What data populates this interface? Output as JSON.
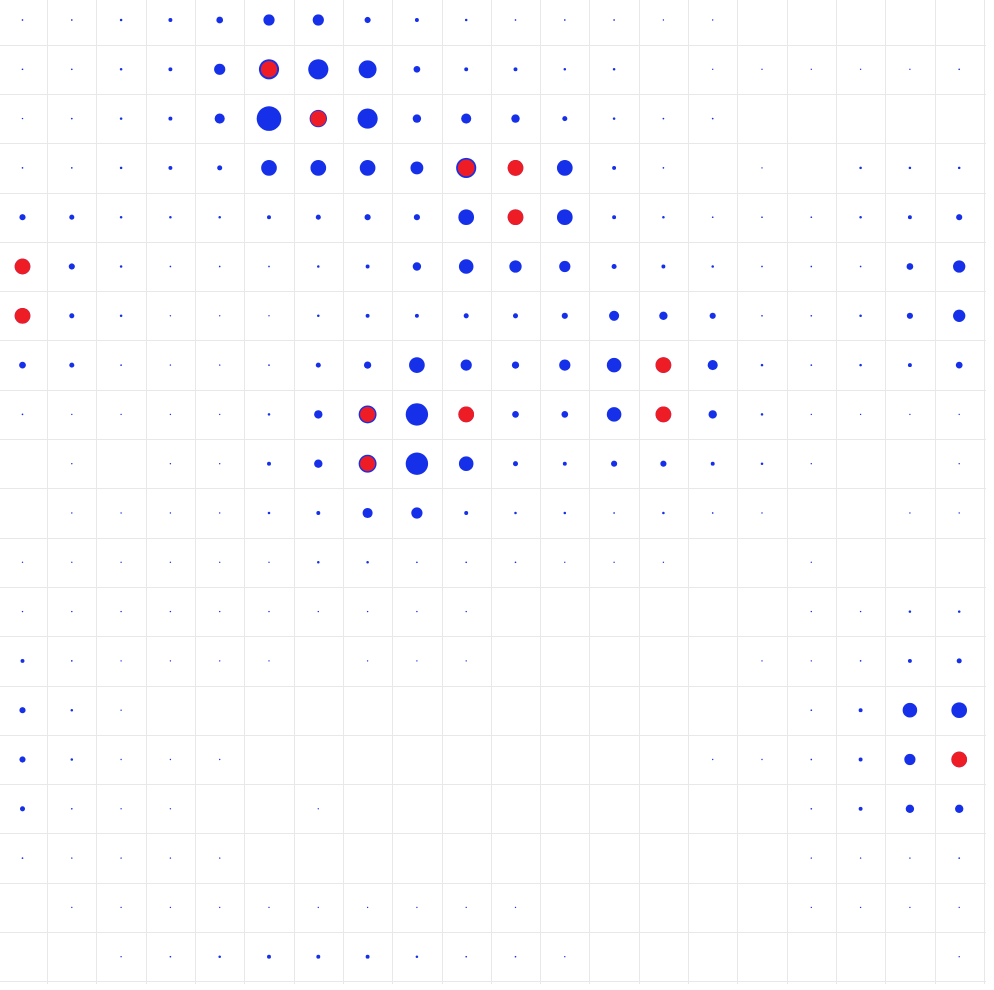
{
  "chart_data": {
    "type": "scatter",
    "grid": true,
    "columns": 20,
    "rows": 20,
    "colors": {
      "base": "#1530e8",
      "highlight": "#ee1c25"
    },
    "size_scale_max": 1.0,
    "size_matrix": [
      [
        0.06,
        0.06,
        0.09,
        0.14,
        0.24,
        0.4,
        0.4,
        0.22,
        0.14,
        0.09,
        0.06,
        0.06,
        0.06,
        0.04,
        0.04,
        0,
        0,
        0,
        0,
        0
      ],
      [
        0.06,
        0.06,
        0.09,
        0.14,
        0.4,
        0.72,
        0.72,
        0.64,
        0.24,
        0.14,
        0.14,
        0.09,
        0.09,
        0,
        0.04,
        0.04,
        0.04,
        0.04,
        0.04,
        0.06
      ],
      [
        0.04,
        0.06,
        0.09,
        0.14,
        0.36,
        0.88,
        0.62,
        0.72,
        0.3,
        0.36,
        0.3,
        0.18,
        0.09,
        0.06,
        0.06,
        0,
        0,
        0,
        0,
        0
      ],
      [
        0.06,
        0.06,
        0.09,
        0.14,
        0.18,
        0.56,
        0.56,
        0.56,
        0.46,
        0.72,
        0.56,
        0.56,
        0.14,
        0.06,
        0,
        0.04,
        0,
        0.09,
        0.09,
        0.09
      ],
      [
        0.22,
        0.18,
        0.09,
        0.09,
        0.09,
        0.14,
        0.18,
        0.22,
        0.22,
        0.56,
        0.56,
        0.56,
        0.14,
        0.09,
        0.06,
        0.06,
        0.06,
        0.09,
        0.14,
        0.22
      ],
      [
        0.56,
        0.22,
        0.09,
        0.06,
        0.06,
        0.06,
        0.09,
        0.14,
        0.3,
        0.52,
        0.44,
        0.4,
        0.18,
        0.14,
        0.09,
        0.06,
        0.06,
        0.06,
        0.24,
        0.44
      ],
      [
        0.56,
        0.18,
        0.09,
        0.04,
        0.04,
        0.04,
        0.09,
        0.14,
        0.14,
        0.18,
        0.18,
        0.22,
        0.36,
        0.3,
        0.22,
        0.06,
        0.06,
        0.09,
        0.22,
        0.44
      ],
      [
        0.24,
        0.18,
        0.06,
        0.04,
        0.04,
        0.06,
        0.18,
        0.26,
        0.56,
        0.4,
        0.26,
        0.4,
        0.52,
        0.56,
        0.36,
        0.09,
        0.06,
        0.09,
        0.14,
        0.24
      ],
      [
        0.06,
        0.04,
        0.04,
        0.04,
        0.04,
        0.09,
        0.3,
        0.64,
        0.8,
        0.56,
        0.24,
        0.24,
        0.52,
        0.56,
        0.3,
        0.09,
        0.04,
        0.04,
        0.04,
        0.04
      ],
      [
        0,
        0.04,
        0,
        0.04,
        0.04,
        0.14,
        0.3,
        0.64,
        0.8,
        0.52,
        0.18,
        0.14,
        0.22,
        0.22,
        0.14,
        0.09,
        0.04,
        0,
        0,
        0.04
      ],
      [
        0,
        0.04,
        0.03,
        0.04,
        0.04,
        0.09,
        0.14,
        0.36,
        0.4,
        0.14,
        0.09,
        0.09,
        0.06,
        0.09,
        0.06,
        0.04,
        0,
        0,
        0.03,
        0.03
      ],
      [
        0.04,
        0.03,
        0.03,
        0.03,
        0.04,
        0.04,
        0.09,
        0.09,
        0.06,
        0.06,
        0.06,
        0.04,
        0.04,
        0.04,
        0,
        0,
        0.03,
        0,
        0,
        0
      ],
      [
        0.04,
        0.04,
        0.04,
        0.04,
        0.04,
        0.04,
        0.04,
        0.04,
        0.04,
        0.04,
        0,
        0,
        0,
        0,
        0,
        0,
        0.04,
        0.04,
        0.09,
        0.09
      ],
      [
        0.14,
        0.06,
        0.04,
        0.03,
        0.03,
        0.03,
        0,
        0.03,
        0.03,
        0.03,
        0,
        0,
        0,
        0,
        0,
        0.03,
        0.04,
        0.06,
        0.14,
        0.18
      ],
      [
        0.22,
        0.09,
        0.04,
        0,
        0,
        0,
        0,
        0,
        0,
        0,
        0,
        0,
        0,
        0,
        0,
        0,
        0.06,
        0.14,
        0.52,
        0.56
      ],
      [
        0.22,
        0.09,
        0.04,
        0.03,
        0.03,
        0,
        0,
        0,
        0,
        0,
        0,
        0,
        0,
        0,
        0.03,
        0.04,
        0.06,
        0.14,
        0.4,
        0.56
      ],
      [
        0.18,
        0.06,
        0.04,
        0.03,
        0,
        0,
        0.03,
        0,
        0,
        0,
        0,
        0,
        0,
        0,
        0,
        0,
        0.06,
        0.14,
        0.3,
        0.3
      ],
      [
        0.06,
        0.04,
        0.04,
        0.03,
        0.03,
        0,
        0,
        0,
        0,
        0,
        0,
        0,
        0,
        0,
        0,
        0,
        0.03,
        0.04,
        0.04,
        0.06
      ],
      [
        0,
        0.03,
        0.03,
        0.03,
        0.04,
        0.04,
        0.04,
        0.04,
        0.03,
        0.03,
        0.03,
        0,
        0,
        0,
        0,
        0,
        0.03,
        0.03,
        0.03,
        0.03
      ],
      [
        0,
        0,
        0.04,
        0.06,
        0.09,
        0.14,
        0.14,
        0.14,
        0.09,
        0.06,
        0.06,
        0.03,
        0,
        0,
        0,
        0,
        0,
        0,
        0,
        0.03
      ]
    ],
    "highlights": [
      {
        "row": 1,
        "col": 5,
        "size": 0.58
      },
      {
        "row": 2,
        "col": 6,
        "size": 0.56
      },
      {
        "row": 3,
        "col": 9,
        "size": 0.6
      },
      {
        "row": 3,
        "col": 10,
        "size": 0.56
      },
      {
        "row": 4,
        "col": 10,
        "size": 0.56
      },
      {
        "row": 5,
        "col": 0,
        "size": 0.56
      },
      {
        "row": 6,
        "col": 0,
        "size": 0.56
      },
      {
        "row": 7,
        "col": 13,
        "size": 0.56
      },
      {
        "row": 8,
        "col": 7,
        "size": 0.54
      },
      {
        "row": 8,
        "col": 9,
        "size": 0.56
      },
      {
        "row": 8,
        "col": 13,
        "size": 0.56
      },
      {
        "row": 9,
        "col": 7,
        "size": 0.54
      },
      {
        "row": 15,
        "col": 19,
        "size": 0.56
      }
    ]
  }
}
